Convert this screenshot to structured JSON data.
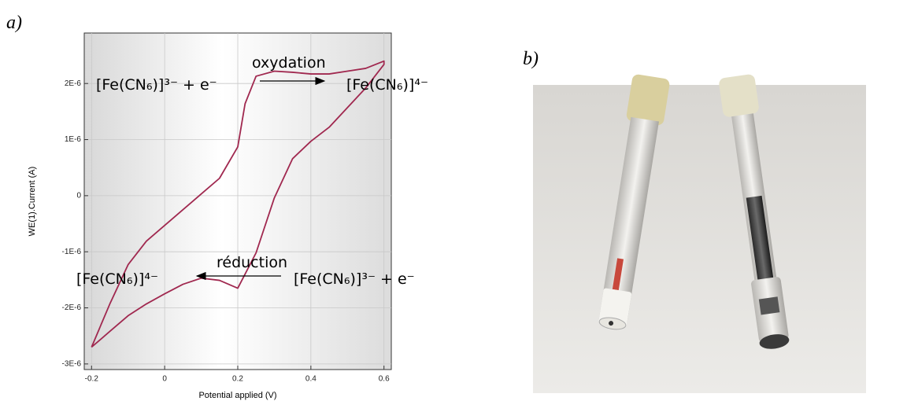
{
  "panel_labels": [
    "a)",
    "b)"
  ],
  "chart_data": {
    "type": "line",
    "y_label": "WE(1).Current (A)",
    "x_label": "Potential applied (V)",
    "annotations": [
      "[Fe(CN₆)]³⁻ + e⁻",
      "oxydation",
      "[Fe(CN₆)]⁴⁻",
      "réduction",
      "[Fe(CN₆)]⁴⁻",
      "[Fe(CN₆)]³⁻ + e⁻"
    ],
    "x": [
      -0.2,
      -0.15,
      -0.1,
      -0.05,
      0,
      0.05,
      0.1,
      0.15,
      0.2,
      0.22,
      0.25,
      0.3,
      0.35,
      0.4,
      0.45,
      0.5,
      0.55,
      0.6,
      0.6,
      0.55,
      0.5,
      0.45,
      0.4,
      0.35,
      0.3,
      0.25,
      0.2,
      0.15,
      0.1,
      0.05,
      0,
      -0.05,
      -0.1,
      -0.15,
      -0.2
    ],
    "values": [
      -2.7e-06,
      -1.93e-06,
      -1.23e-06,
      -8.1e-07,
      -5.3e-07,
      -2.5e-07,
      3e-08,
      3.1e-07,
      8.7e-07,
      1.64e-06,
      2.13e-06,
      2.22e-06,
      2.2e-06,
      2.17e-06,
      2.17e-06,
      2.22e-06,
      2.27e-06,
      2.4e-06,
      2.34e-06,
      1.92e-06,
      1.57e-06,
      1.22e-06,
      9.7e-07,
      6.6e-07,
      -4e-08,
      -1.02e-06,
      -1.65e-06,
      -1.51e-06,
      -1.47e-06,
      -1.58e-06,
      -1.75e-06,
      -1.93e-06,
      -2.14e-06,
      -2.42e-06,
      -2.7e-06
    ],
    "color": "#a0284f",
    "xlim": [
      -0.22,
      0.62
    ],
    "ylim": [
      -3.1e-06,
      2.9e-06
    ],
    "xticks": [
      -0.2,
      0,
      0.2,
      0.4,
      0.6
    ],
    "yticks": [
      {
        "value": -3e-06,
        "label": "-3E-6"
      },
      {
        "value": -2e-06,
        "label": "-2E-6"
      },
      {
        "value": -1e-06,
        "label": "-1E-6"
      },
      0,
      {
        "value": 1e-06,
        "label": "1E-6"
      },
      {
        "value": 2e-06,
        "label": "2E-6"
      }
    ],
    "grid": true
  }
}
